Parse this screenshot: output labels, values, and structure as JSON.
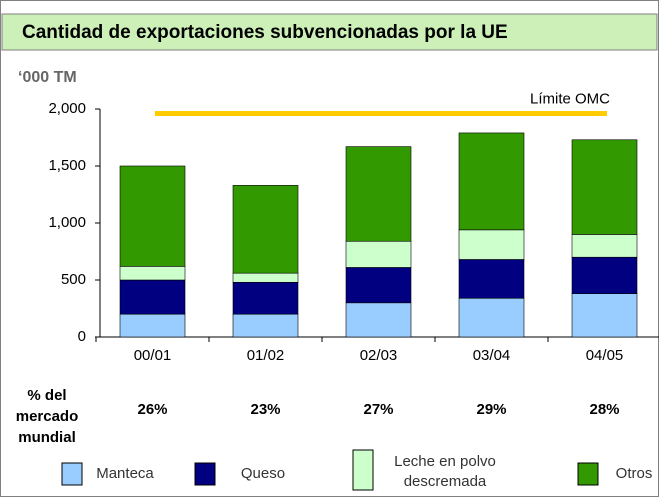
{
  "chart_data": {
    "type": "stacked_bar",
    "title": "Cantidad de exportaciones subvencionadas por la UE",
    "y_unit": "‘000 TM",
    "categories": [
      "00/01",
      "01/02",
      "02/03",
      "03/04",
      "04/05"
    ],
    "series": [
      {
        "name": "Manteca",
        "color": "#99ccff",
        "values": [
          200,
          200,
          300,
          340,
          380
        ]
      },
      {
        "name": "Queso",
        "color": "#000080",
        "values": [
          300,
          280,
          310,
          340,
          320
        ]
      },
      {
        "name": "Leche en polvo descremada",
        "color": "#ccffcc",
        "values": [
          120,
          80,
          230,
          260,
          200
        ]
      },
      {
        "name": "Otros",
        "color": "#339900",
        "values": [
          880,
          770,
          830,
          850,
          830
        ]
      }
    ],
    "ylim": [
      0,
      2000
    ],
    "yticks": [
      0,
      500,
      {
        "value": 1000,
        "label": "1,000"
      },
      {
        "value": 1500,
        "label": "1,500"
      },
      {
        "value": 2000,
        "label": "2,000"
      }
    ],
    "limit": {
      "label": "Límite OMC",
      "value": 1960,
      "color": "#ffcc00"
    },
    "market_share": {
      "label": "% del mercado mundial",
      "values": [
        26,
        23,
        27,
        29,
        28
      ],
      "value_labels": [
        "26%",
        "23%",
        "27%",
        "29%",
        "28%"
      ]
    }
  }
}
